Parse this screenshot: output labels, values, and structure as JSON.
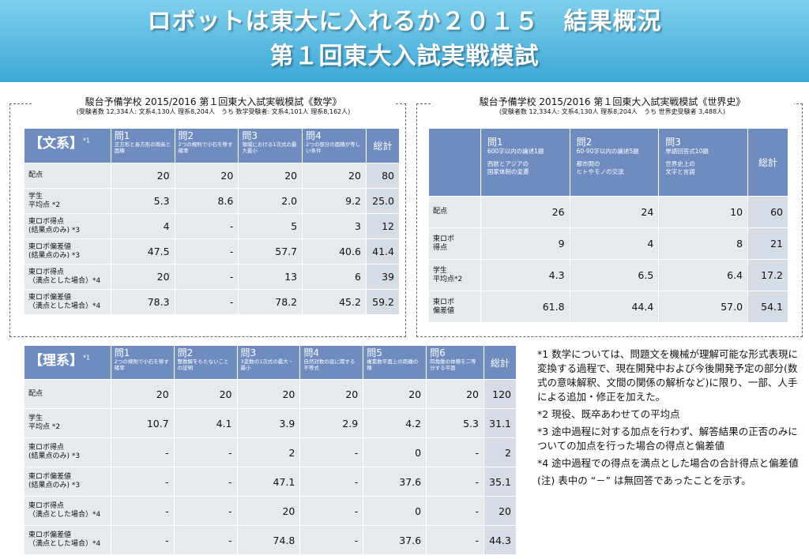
{
  "banner": {
    "title1": "ロボットは東大に入れるか２０１５　結果概況",
    "title2": "第１回東大入試実戦模試"
  },
  "math": {
    "title": "駿台予備学校 2015/2016 第１回東大入試実戦模試《数学》",
    "sub": "(受験者数 12,334人: 文系4,130人 理系8,204人　うち 数学受験者: 文系4,101人 理系8,162人)",
    "bunkei": {
      "label": "【文系】",
      "sup": "*1",
      "total_label": "総計",
      "questions": [
        {
          "t": "問1",
          "d": "正方形と長方形の周長と面積"
        },
        {
          "t": "問2",
          "d": "2つの規則で小石を移す確率"
        },
        {
          "t": "問3",
          "d": "領域における1次式の最大最小"
        },
        {
          "t": "問4",
          "d": "2つの部分の面積が等しい条件"
        }
      ],
      "rows": [
        {
          "l1": "配点",
          "l2": "",
          "v": [
            "20",
            "20",
            "20",
            "20",
            "80"
          ]
        },
        {
          "l1": "学生",
          "l2": "平均点 *2",
          "v": [
            "5.3",
            "8.6",
            "2.0",
            "9.2",
            "25.0"
          ]
        },
        {
          "l1": "東ロボ得点",
          "l2": "(結果点のみ) *3",
          "v": [
            "4",
            "-",
            "5",
            "3",
            "12"
          ]
        },
        {
          "l1": "東ロボ偏差値",
          "l2": "(結果点のみ) *3",
          "v": [
            "47.5",
            "-",
            "57.7",
            "40.6",
            "41.4"
          ]
        },
        {
          "l1": "東ロボ得点",
          "l2": "（満点とした場合）*4",
          "v": [
            "20",
            "-",
            "13",
            "6",
            "39"
          ]
        },
        {
          "l1": "東ロボ偏差値",
          "l2": "（満点とした場合）*4",
          "v": [
            "78.3",
            "-",
            "78.2",
            "45.2",
            "59.2"
          ]
        }
      ]
    },
    "rikei": {
      "label": "【理系】",
      "sup": "*1",
      "total_label": "総計",
      "questions": [
        {
          "t": "問1",
          "d": "2つの規則で小石を移す確率"
        },
        {
          "t": "問2",
          "d": "整数解をもたないことの証明"
        },
        {
          "t": "問3",
          "d": "3変数の1次式の最大・最小"
        },
        {
          "t": "問4",
          "d": "自然対数の底に関する不等式"
        },
        {
          "t": "問5",
          "d": "複素数平面上の距離の積"
        },
        {
          "t": "問6",
          "d": "四角錐の体積を二等分する平面"
        }
      ],
      "rows": [
        {
          "l1": "配点",
          "l2": "",
          "v": [
            "20",
            "20",
            "20",
            "20",
            "20",
            "20",
            "120"
          ]
        },
        {
          "l1": "学生",
          "l2": "平均点 *2",
          "v": [
            "10.7",
            "4.1",
            "3.9",
            "2.9",
            "4.2",
            "5.3",
            "31.1"
          ]
        },
        {
          "l1": "東ロボ得点",
          "l2": "(結果点のみ) *3",
          "v": [
            "-",
            "-",
            "2",
            "-",
            "0",
            "-",
            "2"
          ]
        },
        {
          "l1": "東ロボ偏差値",
          "l2": "(結果点のみ) *3",
          "v": [
            "-",
            "-",
            "47.1",
            "-",
            "37.6",
            "-",
            "35.1"
          ]
        },
        {
          "l1": "東ロボ得点",
          "l2": "（満点とした場合）*4",
          "v": [
            "-",
            "-",
            "20",
            "-",
            "0",
            "-",
            "20"
          ]
        },
        {
          "l1": "東ロボ偏差値",
          "l2": "（満点とした場合）*4",
          "v": [
            "-",
            "-",
            "74.8",
            "-",
            "37.6",
            "-",
            "44.3"
          ]
        }
      ]
    }
  },
  "history": {
    "title": "駿台予備学校 2015/2016 第１回東大入試実戦模試《世界史》",
    "sub": "(受験者数 12,334人: 文系4,130人 理系8,204人　うち 世界史受験者 3,488人)",
    "total_label": "総計",
    "questions": [
      {
        "t": "問1",
        "d1": "600字以内の論述1題",
        "d2": "西欧とアジアの",
        "d3": "国家体制の変遷"
      },
      {
        "t": "問2",
        "d1": "60-90字以内の論述5題",
        "d2": "都市間の",
        "d3": "ヒトやモノの交流"
      },
      {
        "t": "問3",
        "d1": "単語回答式10題",
        "d2": "世界史上の",
        "d3": "文字と言語"
      }
    ],
    "rows": [
      {
        "l1": "配点",
        "l2": "",
        "v": [
          "26",
          "24",
          "10",
          "60"
        ]
      },
      {
        "l1": "東ロボ",
        "l2": "得点",
        "v": [
          "9",
          "4",
          "8",
          "21"
        ]
      },
      {
        "l1": "学生",
        "l2": "平均点*2",
        "v": [
          "4.3",
          "6.5",
          "6.4",
          "17.2"
        ]
      },
      {
        "l1": "東ロボ",
        "l2": "偏差値",
        "v": [
          "61.8",
          "44.4",
          "57.0",
          "54.1"
        ]
      }
    ]
  },
  "notes": [
    "*1 数学については、問題文を機械が理解可能な形式表現に変換する過程で、現在開発中および今後開発予定の部分(数式の意味解釈、文間の関係の解析など)に限り、一部、人手による追加・修正を加えた。",
    "*2  現役、既卒あわせての平均点",
    "*3  途中過程に対する加点を行わず、解答結果の正否のみについての加点を行った場合の得点と偏差値",
    "*4  途中過程での得点を満点とした場合の合計得点と偏差値",
    "(注) 表中の “－” は無回答であったことを示す。"
  ]
}
